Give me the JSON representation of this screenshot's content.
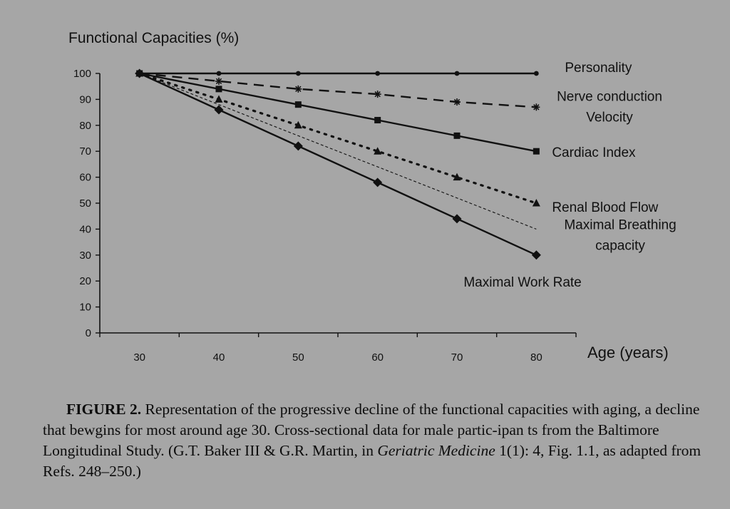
{
  "chart_data": {
    "type": "line",
    "ylabel": "Functional  Capacities (%)",
    "xlabel": "Age (years)",
    "x": [
      30,
      40,
      50,
      60,
      70,
      80
    ],
    "xticks": [
      "30",
      "40",
      "50",
      "60",
      "70",
      "80"
    ],
    "yticks": [
      "0",
      "10",
      "20",
      "30",
      "40",
      "50",
      "60",
      "70",
      "80",
      "90",
      "100"
    ],
    "xlim": [
      25,
      85
    ],
    "ylim": [
      0,
      100
    ],
    "grid": false,
    "series": [
      {
        "name": "Personality",
        "values": [
          100,
          100,
          100,
          100,
          100,
          100
        ],
        "line": "solid",
        "marker": "dot"
      },
      {
        "name": "Nerve conduction Velocity",
        "label_lines": [
          "Nerve conduction",
          "Velocity"
        ],
        "values": [
          100,
          97,
          94,
          92,
          89,
          87
        ],
        "line": "dashed",
        "marker": "star"
      },
      {
        "name": "Cardiac Index",
        "values": [
          100,
          94,
          88,
          82,
          76,
          70
        ],
        "line": "solid",
        "marker": "square"
      },
      {
        "name": "Renal Blood Flow",
        "values": [
          100,
          90,
          80,
          70,
          60,
          50
        ],
        "line": "dotted",
        "marker": "triangle"
      },
      {
        "name": "Maximal Breathing capacity",
        "label_lines": [
          "Maximal Breathing",
          "capacity"
        ],
        "values": [
          100,
          88,
          76,
          64,
          52,
          40
        ],
        "line": "thin-dashed",
        "marker": "none"
      },
      {
        "name": "Maximal Work Rate",
        "values": [
          100,
          86,
          72,
          58,
          44,
          30
        ],
        "line": "solid",
        "marker": "diamond"
      }
    ]
  },
  "caption": {
    "label": "FIGURE  2.",
    "text_before": " Representation of the progressive decline of the functional capacities with aging, a decline that bewgins for most around age 30. Cross-sectional data for male partic-ipan ts from the Baltimore Longitudinal Study. (G.T. Baker III & G.R. Martin, in ",
    "journal": "Geriatric Medicine",
    "text_after": " 1(1): 4, Fig. 1.1, as adapted from Refs. 248–250.)"
  }
}
